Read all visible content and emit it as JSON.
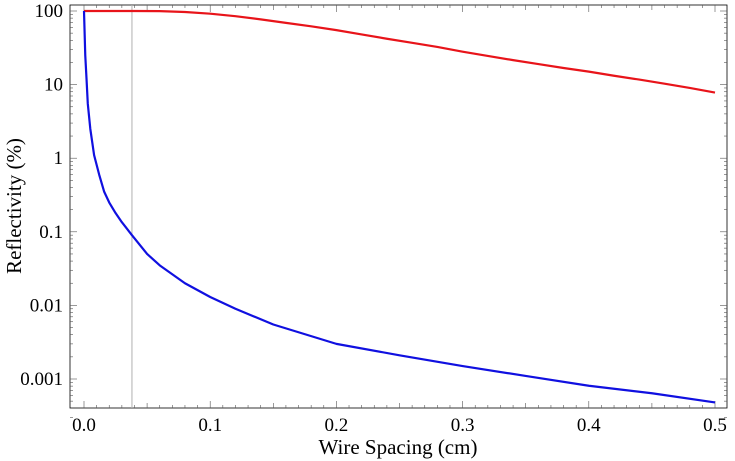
{
  "chart_data": {
    "type": "line",
    "xlabel": "Wire Spacing (cm)",
    "ylabel": "Reflectivity (%)",
    "xlim": [
      -0.01,
      0.51
    ],
    "ylim": [
      0.0003,
      120
    ],
    "yscale": "log",
    "grid": false,
    "legend": "none",
    "x_ticks": [
      {
        "value": 0.0,
        "label": "0.0"
      },
      {
        "value": 0.1,
        "label": "0.1"
      },
      {
        "value": 0.2,
        "label": "0.2"
      },
      {
        "value": 0.3,
        "label": "0.3"
      },
      {
        "value": 0.4,
        "label": "0.4"
      },
      {
        "value": 0.5,
        "label": "0.5"
      }
    ],
    "y_ticks": [
      {
        "value": 100,
        "label": "100"
      },
      {
        "value": 10,
        "label": "10"
      },
      {
        "value": 1,
        "label": "1"
      },
      {
        "value": 0.1,
        "label": "0.1"
      },
      {
        "value": 0.01,
        "label": "0.01"
      },
      {
        "value": 0.001,
        "label": "0.001"
      }
    ],
    "vertical_line": {
      "x": 0.038,
      "color": "#b0b0b0"
    },
    "series": [
      {
        "color": "#e8141a",
        "points": [
          [
            0.0,
            100
          ],
          [
            0.02,
            100
          ],
          [
            0.04,
            100
          ],
          [
            0.06,
            99.5
          ],
          [
            0.08,
            97
          ],
          [
            0.1,
            92
          ],
          [
            0.12,
            85
          ],
          [
            0.14,
            77
          ],
          [
            0.16,
            69
          ],
          [
            0.18,
            62
          ],
          [
            0.2,
            55
          ],
          [
            0.22,
            48
          ],
          [
            0.24,
            42
          ],
          [
            0.26,
            37
          ],
          [
            0.28,
            32.5
          ],
          [
            0.3,
            28
          ],
          [
            0.32,
            24.5
          ],
          [
            0.34,
            21.5
          ],
          [
            0.36,
            19
          ],
          [
            0.38,
            16.8
          ],
          [
            0.4,
            15
          ],
          [
            0.42,
            13.2
          ],
          [
            0.44,
            11.7
          ],
          [
            0.46,
            10.3
          ],
          [
            0.48,
            9
          ],
          [
            0.5,
            7.8
          ]
        ]
      },
      {
        "color": "#1010e0",
        "points": [
          [
            0.0,
            100
          ],
          [
            0.001,
            25
          ],
          [
            0.002,
            12
          ],
          [
            0.003,
            5.5
          ],
          [
            0.005,
            2.5
          ],
          [
            0.008,
            1.1
          ],
          [
            0.012,
            0.6
          ],
          [
            0.016,
            0.35
          ],
          [
            0.02,
            0.25
          ],
          [
            0.025,
            0.18
          ],
          [
            0.03,
            0.135
          ],
          [
            0.038,
            0.09
          ],
          [
            0.05,
            0.05
          ],
          [
            0.06,
            0.035
          ],
          [
            0.08,
            0.02
          ],
          [
            0.1,
            0.013
          ],
          [
            0.12,
            0.009
          ],
          [
            0.15,
            0.0055
          ],
          [
            0.2,
            0.003
          ],
          [
            0.25,
            0.0021
          ],
          [
            0.3,
            0.0015
          ],
          [
            0.35,
            0.0011
          ],
          [
            0.4,
            0.00081
          ],
          [
            0.45,
            0.00064
          ],
          [
            0.5,
            0.00048
          ]
        ]
      }
    ]
  }
}
